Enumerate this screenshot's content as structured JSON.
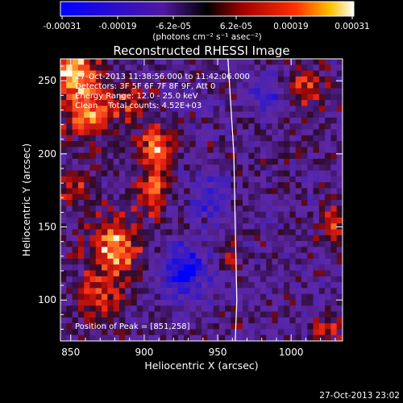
{
  "colorbar": {
    "tick_labels": [
      "-0.00031",
      "-0.00019",
      "-6.2e-05",
      "6.2e-05",
      "0.00019",
      "0.00031"
    ],
    "units": "(photons cm⁻² s⁻¹ asec⁻²)",
    "range": [
      -0.00031,
      0.00031
    ]
  },
  "chart_data": {
    "type": "heatmap",
    "title": "Reconstructed RHESSI Image",
    "xlabel": "Heliocentric X (arcsec)",
    "ylabel": "Heliocentric Y (arcsec)",
    "xlim": [
      843,
      1035
    ],
    "ylim": [
      72,
      265
    ],
    "x_ticks": [
      850,
      900,
      950,
      1000
    ],
    "y_ticks": [
      100,
      150,
      200,
      250
    ],
    "annotations": [
      "27-Oct-2013 11:38:56.000 to 11:42:06.000",
      "Detectors: 3F 5F 6F 7F 8F 9F, Att 0",
      "Energy Range: 12.0 - 25.0 keV",
      "Clean    Total counts: 4.52E+03"
    ],
    "peak_label": "Position of Peak = [851,258]",
    "peak_position": [
      851,
      258
    ],
    "limb_curve": [
      [
        957,
        265
      ],
      [
        961,
        200
      ],
      [
        962,
        150
      ],
      [
        963,
        100
      ],
      [
        962,
        72
      ]
    ],
    "grid_resolution": [
      48,
      48
    ],
    "features": [
      {
        "kind": "positive",
        "center": [
          851,
          258
        ],
        "sigma": [
          10,
          10
        ],
        "amp": 1.0
      },
      {
        "kind": "positive",
        "center": [
          862,
          230
        ],
        "sigma": [
          12,
          14
        ],
        "amp": 0.8
      },
      {
        "kind": "positive",
        "center": [
          890,
          235
        ],
        "sigma": [
          8,
          10
        ],
        "amp": 0.5
      },
      {
        "kind": "positive",
        "center": [
          908,
          205
        ],
        "sigma": [
          8,
          10
        ],
        "amp": 0.75
      },
      {
        "kind": "positive",
        "center": [
          905,
          175
        ],
        "sigma": [
          7,
          12
        ],
        "amp": 0.7
      },
      {
        "kind": "positive",
        "center": [
          852,
          175
        ],
        "sigma": [
          7,
          8
        ],
        "amp": 0.55
      },
      {
        "kind": "positive",
        "center": [
          880,
          135
        ],
        "sigma": [
          12,
          16
        ],
        "amp": 0.85
      },
      {
        "kind": "positive",
        "center": [
          870,
          100
        ],
        "sigma": [
          10,
          12
        ],
        "amp": 0.6
      },
      {
        "kind": "positive",
        "center": [
          1010,
          245
        ],
        "sigma": [
          9,
          10
        ],
        "amp": 0.6
      },
      {
        "kind": "positive",
        "center": [
          1030,
          150
        ],
        "sigma": [
          6,
          12
        ],
        "amp": 0.55
      },
      {
        "kind": "positive",
        "center": [
          1025,
          80
        ],
        "sigma": [
          8,
          6
        ],
        "amp": 0.55
      },
      {
        "kind": "positive",
        "center": [
          960,
          130
        ],
        "sigma": [
          5,
          6
        ],
        "amp": 0.35
      },
      {
        "kind": "negative",
        "center": [
          928,
          120
        ],
        "sigma": [
          10,
          12
        ],
        "amp": -0.9
      },
      {
        "kind": "negative",
        "center": [
          985,
          240
        ],
        "sigma": [
          9,
          9
        ],
        "amp": -0.45
      },
      {
        "kind": "negative",
        "center": [
          945,
          170
        ],
        "sigma": [
          9,
          12
        ],
        "amp": -0.45
      }
    ]
  },
  "footer": {
    "timestamp": "27-Oct-2013 23:02"
  }
}
